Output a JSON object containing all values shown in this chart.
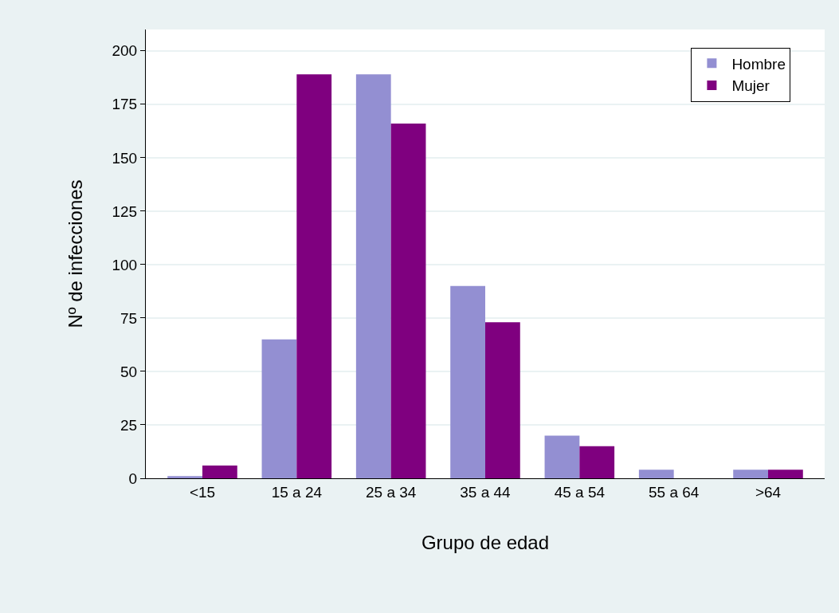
{
  "chart_data": {
    "type": "bar",
    "xlabel": "Grupo de edad",
    "ylabel": "Nº de infecciones",
    "categories": [
      "<15",
      "15 a 24",
      "25 a 34",
      "35 a 44",
      "45 a 54",
      "55 a 64",
      ">64"
    ],
    "series": [
      {
        "name": "Hombre",
        "color": "#938fd2",
        "values": [
          1,
          65,
          189,
          90,
          20,
          4,
          4
        ]
      },
      {
        "name": "Mujer",
        "color": "#7f007f",
        "values": [
          6,
          189,
          166,
          73,
          15,
          0,
          4
        ]
      }
    ],
    "ylim": [
      0,
      210
    ],
    "yticks": [
      0,
      25,
      50,
      75,
      100,
      125,
      150,
      175,
      200
    ],
    "grid": "y",
    "legend": "top right"
  }
}
